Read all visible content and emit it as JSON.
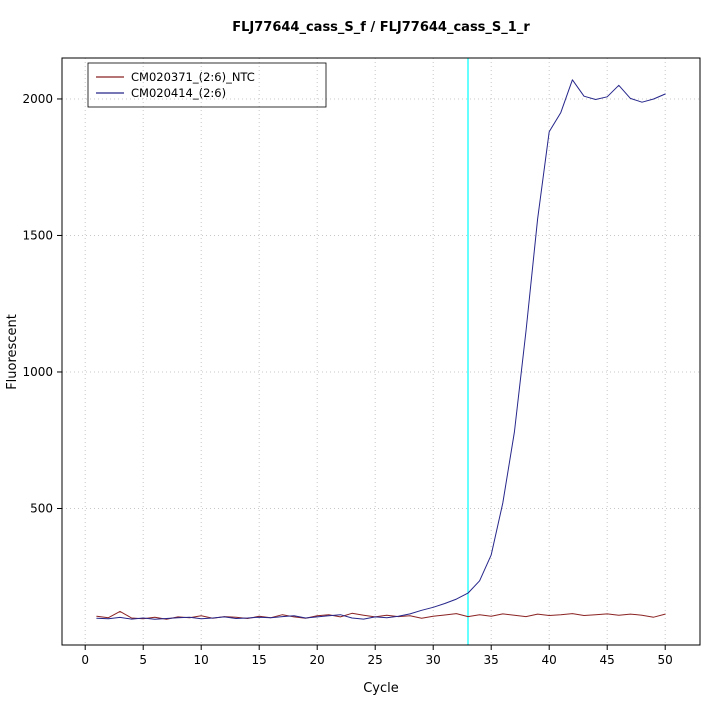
{
  "title": "FLJ77644_cass_S_f / FLJ77644_cass_S_1_r",
  "chart_data": {
    "type": "line",
    "title": "FLJ77644_cass_S_f / FLJ77644_cass_S_1_r",
    "xlabel": "Cycle",
    "ylabel": "Fluorescent",
    "xlim": [
      -2,
      53
    ],
    "ylim": [
      0,
      2150
    ],
    "xticks": [
      0,
      5,
      10,
      15,
      20,
      25,
      30,
      35,
      40,
      45,
      50
    ],
    "yticks": [
      500,
      1000,
      1500,
      2000
    ],
    "grid": "dotted",
    "grid_color": "#c8c8c8",
    "threshold_line": {
      "x": 33,
      "color": "#00ffff"
    },
    "legend": {
      "position": "top-left",
      "entries": [
        {
          "label": "CM020371_(2:6)_NTC",
          "color": "#8b2323"
        },
        {
          "label": "CM020414_(2:6)",
          "color": "#26268b"
        }
      ]
    },
    "x": [
      1,
      2,
      3,
      4,
      5,
      6,
      7,
      8,
      9,
      10,
      11,
      12,
      13,
      14,
      15,
      16,
      17,
      18,
      19,
      20,
      21,
      22,
      23,
      24,
      25,
      26,
      27,
      28,
      29,
      30,
      31,
      32,
      33,
      34,
      35,
      36,
      37,
      38,
      39,
      40,
      41,
      42,
      43,
      44,
      45,
      46,
      47,
      48,
      49,
      50
    ],
    "series": [
      {
        "name": "CM020371_(2:6)_NTC",
        "color": "#8b2323",
        "values": [
          105,
          100,
          123,
          99,
          96,
          102,
          94,
          103,
          100,
          107,
          98,
          104,
          102,
          97,
          105,
          100,
          111,
          103,
          98,
          107,
          111,
          103,
          116,
          109,
          103,
          109,
          104,
          107,
          98,
          105,
          110,
          115,
          104,
          111,
          105,
          114,
          109,
          104,
          113,
          108,
          111,
          115,
          108,
          111,
          114,
          109,
          113,
          109,
          102,
          113
        ]
      },
      {
        "name": "CM020414_(2:6)",
        "color": "#26268b",
        "values": [
          98,
          96,
          101,
          95,
          99,
          94,
          97,
          100,
          102,
          96,
          99,
          103,
          97,
          99,
          102,
          100,
          104,
          107,
          99,
          103,
          107,
          111,
          99,
          95,
          103,
          100,
          105,
          114,
          127,
          138,
          152,
          168,
          190,
          235,
          330,
          520,
          780,
          1150,
          1560,
          1880,
          1950,
          2070,
          2010,
          1998,
          2008,
          2050,
          2002,
          1988,
          2000,
          2018
        ]
      }
    ]
  }
}
